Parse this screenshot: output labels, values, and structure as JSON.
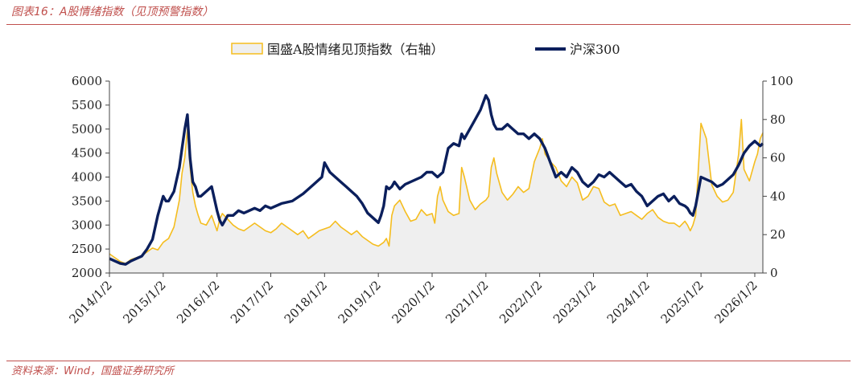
{
  "figure": {
    "title": "图表16：A股情绪指数（见顶预警指数）",
    "source": "资料来源：Wind，国盛证券研究所"
  },
  "colors": {
    "accent": "#c0504d",
    "hs300": "#0b1f5c",
    "sentiment_line": "#f5bd1f",
    "sentiment_fill": "#efefef"
  },
  "chart_data": {
    "type": "line",
    "legend_position": "top-center",
    "grid": false,
    "x_ticks": [
      "2014/1/2",
      "2015/1/2",
      "2016/1/2",
      "2017/1/2",
      "2018/1/2",
      "2019/1/2",
      "2020/1/2",
      "2021/1/2",
      "2022/1/2",
      "2023/1/2",
      "2024/1/2",
      "2025/1/2",
      "2026/1/2"
    ],
    "xlim": [
      2014.0,
      2026.15
    ],
    "y_left": {
      "ylim": [
        2000,
        6000
      ],
      "ticks": [
        2000,
        2500,
        3000,
        3500,
        4000,
        4500,
        5000,
        5500,
        6000
      ]
    },
    "y_right": {
      "ylim": [
        0,
        100
      ],
      "ticks": [
        0,
        20,
        40,
        60,
        80,
        100
      ]
    },
    "series": [
      {
        "name": "国盛A股情绪见顶指数（右轴）",
        "axis": "right",
        "style": "area",
        "x": [
          2014.0,
          2014.1,
          2014.2,
          2014.3,
          2014.4,
          2014.5,
          2014.6,
          2014.7,
          2014.8,
          2014.9,
          2015.0,
          2015.1,
          2015.2,
          2015.3,
          2015.35,
          2015.4,
          2015.45,
          2015.5,
          2015.55,
          2015.6,
          2015.65,
          2015.7,
          2015.8,
          2015.9,
          2016.0,
          2016.05,
          2016.1,
          2016.2,
          2016.3,
          2016.4,
          2016.5,
          2016.6,
          2016.7,
          2016.8,
          2016.9,
          2017.0,
          2017.1,
          2017.2,
          2017.3,
          2017.4,
          2017.5,
          2017.6,
          2017.7,
          2017.8,
          2017.9,
          2018.0,
          2018.1,
          2018.2,
          2018.3,
          2018.4,
          2018.5,
          2018.6,
          2018.7,
          2018.8,
          2018.9,
          2019.0,
          2019.1,
          2019.15,
          2019.2,
          2019.25,
          2019.3,
          2019.4,
          2019.5,
          2019.6,
          2019.7,
          2019.8,
          2019.9,
          2020.0,
          2020.05,
          2020.1,
          2020.15,
          2020.2,
          2020.3,
          2020.4,
          2020.5,
          2020.55,
          2020.6,
          2020.7,
          2020.8,
          2020.9,
          2021.0,
          2021.05,
          2021.1,
          2021.15,
          2021.2,
          2021.3,
          2021.4,
          2021.5,
          2021.6,
          2021.7,
          2021.8,
          2021.9,
          2022.0,
          2022.05,
          2022.1,
          2022.2,
          2022.3,
          2022.4,
          2022.5,
          2022.6,
          2022.7,
          2022.8,
          2022.9,
          2023.0,
          2023.1,
          2023.2,
          2023.3,
          2023.4,
          2023.5,
          2023.6,
          2023.7,
          2023.8,
          2023.9,
          2024.0,
          2024.1,
          2024.2,
          2024.3,
          2024.4,
          2024.5,
          2024.6,
          2024.7,
          2024.75,
          2024.8,
          2024.85,
          2024.9,
          2025.0,
          2025.1,
          2025.2,
          2025.3,
          2025.4,
          2025.5,
          2025.6,
          2025.7,
          2025.75,
          2025.8,
          2025.9,
          2026.0,
          2026.05,
          2026.1,
          2026.15
        ],
        "values": [
          10,
          8,
          6,
          5,
          7,
          8,
          9,
          11,
          13,
          12,
          16,
          18,
          24,
          38,
          52,
          60,
          75,
          55,
          42,
          35,
          30,
          26,
          25,
          30,
          22,
          28,
          31,
          28,
          25,
          23,
          22,
          24,
          26,
          24,
          22,
          21,
          23,
          26,
          24,
          22,
          20,
          22,
          18,
          20,
          22,
          23,
          24,
          27,
          24,
          22,
          20,
          22,
          19,
          17,
          15,
          14,
          16,
          18,
          14,
          30,
          35,
          38,
          32,
          27,
          28,
          33,
          30,
          31,
          26,
          40,
          45,
          38,
          32,
          30,
          31,
          55,
          50,
          38,
          33,
          36,
          38,
          40,
          55,
          60,
          52,
          42,
          38,
          41,
          45,
          42,
          44,
          58,
          65,
          70,
          62,
          58,
          55,
          48,
          45,
          50,
          47,
          38,
          40,
          45,
          44,
          37,
          35,
          36,
          30,
          31,
          32,
          30,
          28,
          31,
          33,
          29,
          27,
          26,
          26,
          24,
          27,
          25,
          22,
          25,
          30,
          78,
          70,
          46,
          40,
          37,
          38,
          42,
          62,
          80,
          54,
          48,
          58,
          62,
          70,
          73
        ]
      },
      {
        "name": "沪深300",
        "axis": "left",
        "style": "line",
        "x": [
          2014.0,
          2014.1,
          2014.2,
          2014.3,
          2014.4,
          2014.5,
          2014.6,
          2014.7,
          2014.8,
          2014.9,
          2015.0,
          2015.05,
          2015.1,
          2015.2,
          2015.3,
          2015.35,
          2015.4,
          2015.45,
          2015.5,
          2015.55,
          2015.6,
          2015.65,
          2015.7,
          2015.8,
          2015.9,
          2016.0,
          2016.05,
          2016.1,
          2016.2,
          2016.3,
          2016.4,
          2016.5,
          2016.6,
          2016.7,
          2016.8,
          2016.9,
          2017.0,
          2017.2,
          2017.4,
          2017.6,
          2017.8,
          2017.95,
          2018.0,
          2018.1,
          2018.2,
          2018.3,
          2018.4,
          2018.5,
          2018.6,
          2018.7,
          2018.8,
          2018.9,
          2019.0,
          2019.05,
          2019.1,
          2019.15,
          2019.2,
          2019.25,
          2019.3,
          2019.4,
          2019.5,
          2019.6,
          2019.7,
          2019.8,
          2019.9,
          2020.0,
          2020.1,
          2020.2,
          2020.3,
          2020.4,
          2020.5,
          2020.55,
          2020.6,
          2020.7,
          2020.8,
          2020.9,
          2021.0,
          2021.05,
          2021.1,
          2021.15,
          2021.2,
          2021.3,
          2021.4,
          2021.5,
          2021.6,
          2021.7,
          2021.8,
          2021.9,
          2022.0,
          2022.1,
          2022.2,
          2022.3,
          2022.4,
          2022.5,
          2022.6,
          2022.7,
          2022.8,
          2022.9,
          2023.0,
          2023.1,
          2023.2,
          2023.3,
          2023.4,
          2023.5,
          2023.6,
          2023.7,
          2023.8,
          2023.9,
          2024.0,
          2024.1,
          2024.2,
          2024.3,
          2024.4,
          2024.5,
          2024.6,
          2024.7,
          2024.75,
          2024.8,
          2024.85,
          2024.9,
          2025.0,
          2025.1,
          2025.2,
          2025.3,
          2025.4,
          2025.5,
          2025.6,
          2025.7,
          2025.8,
          2025.9,
          2026.0,
          2026.05,
          2026.1,
          2026.15
        ],
        "values": [
          2300,
          2250,
          2200,
          2180,
          2250,
          2300,
          2350,
          2500,
          2700,
          3200,
          3600,
          3500,
          3500,
          3700,
          4200,
          4600,
          5000,
          5300,
          4400,
          3900,
          3800,
          3600,
          3600,
          3700,
          3800,
          3300,
          3100,
          3000,
          3200,
          3200,
          3300,
          3250,
          3300,
          3350,
          3300,
          3400,
          3350,
          3450,
          3500,
          3650,
          3850,
          4000,
          4300,
          4100,
          4000,
          3900,
          3800,
          3700,
          3600,
          3450,
          3250,
          3150,
          3050,
          3200,
          3400,
          3800,
          3750,
          3800,
          3900,
          3750,
          3850,
          3900,
          3950,
          4000,
          4100,
          4100,
          4000,
          4100,
          4600,
          4700,
          4650,
          4900,
          4800,
          5000,
          5200,
          5400,
          5700,
          5600,
          5300,
          5100,
          5000,
          5000,
          5100,
          5000,
          4900,
          4900,
          4800,
          4900,
          4800,
          4600,
          4300,
          4000,
          4100,
          4000,
          4200,
          4100,
          3900,
          3800,
          3900,
          4050,
          4000,
          4100,
          4000,
          3900,
          3800,
          3850,
          3700,
          3600,
          3400,
          3500,
          3600,
          3650,
          3500,
          3600,
          3450,
          3400,
          3350,
          3250,
          3200,
          3400,
          4000,
          3950,
          3900,
          3800,
          3850,
          3950,
          4050,
          4250,
          4500,
          4650,
          4750,
          4700,
          4650,
          4700
        ]
      }
    ]
  }
}
